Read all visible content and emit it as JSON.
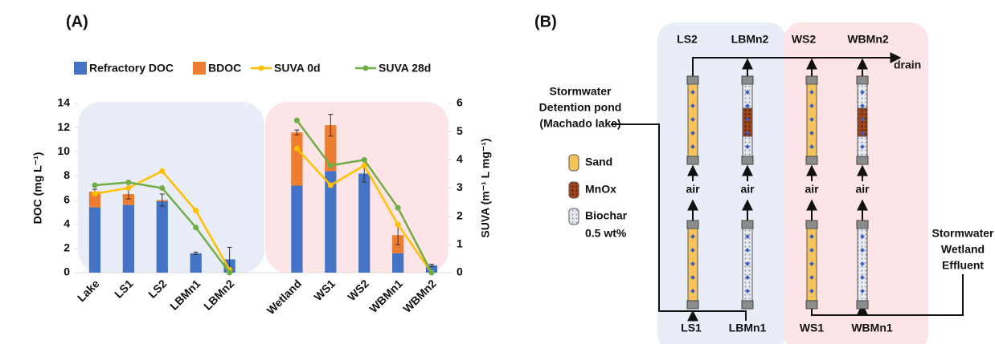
{
  "chart_data": {
    "type": "bar",
    "title": "(A)",
    "categories": [
      "Lake",
      "LS1",
      "LS2",
      "LBMn1",
      "LBMn2",
      null,
      "Wetland",
      "WS1",
      "WS2",
      "WBMn1",
      "WBMn2"
    ],
    "series": [
      {
        "name": "Refractory DOC",
        "color": "#4472c4",
        "values": [
          5.4,
          5.6,
          5.9,
          1.6,
          1.1,
          null,
          7.2,
          8.4,
          8.2,
          1.6,
          0.6
        ]
      },
      {
        "name": "BDOC",
        "color": "#ed7d31",
        "values": [
          1.3,
          0.9,
          0.1,
          0,
          0,
          null,
          4.4,
          3.8,
          0,
          1.5,
          0
        ],
        "errors": [
          0.2,
          0.4,
          0.5,
          0.1,
          1.0,
          null,
          0.2,
          0.9,
          0.7,
          0.8,
          0.1
        ]
      },
      {
        "name": "SUVA 0d",
        "type": "line",
        "axis": "y2",
        "color": "#ffc000",
        "values": [
          2.8,
          3.0,
          3.6,
          2.2,
          0.1,
          null,
          4.4,
          3.1,
          3.8,
          1.7,
          0
        ]
      },
      {
        "name": "SUVA 28d",
        "type": "line",
        "axis": "y2",
        "color": "#70ad47",
        "values": [
          3.1,
          3.2,
          3.0,
          1.6,
          0,
          null,
          5.4,
          3.8,
          4.0,
          2.3,
          0
        ]
      }
    ],
    "y_label": "DOC (mg L⁻¹)",
    "y2_label": "SUVA (m⁻¹ L mg⁻¹)",
    "ylim": [
      0,
      14
    ],
    "yticks": [
      0,
      2,
      4,
      6,
      8,
      10,
      12,
      14
    ],
    "y2lim": [
      0,
      6
    ],
    "y2ticks": [
      0,
      1,
      2,
      3,
      4,
      5,
      6
    ],
    "stacked": true
  },
  "diagram": {
    "title": "(B)",
    "outlet_labels": [
      "LS2",
      "LBMn2",
      "WS2",
      "WBMn2"
    ],
    "inlet_labels": [
      "LS1",
      "LBMn1",
      "WS1",
      "WBMn1"
    ],
    "drain": "drain",
    "air": [
      "air",
      "air",
      "air",
      "air"
    ],
    "pond_source": [
      "Stormwater",
      "Detention pond",
      "(Machado lake)"
    ],
    "wetland_source": [
      "Stormwater",
      "Wetland",
      "Effluent"
    ],
    "legend": [
      [
        "Sand"
      ],
      [
        "MnOx"
      ],
      [
        "Biochar",
        "0.5 wt%"
      ]
    ]
  }
}
